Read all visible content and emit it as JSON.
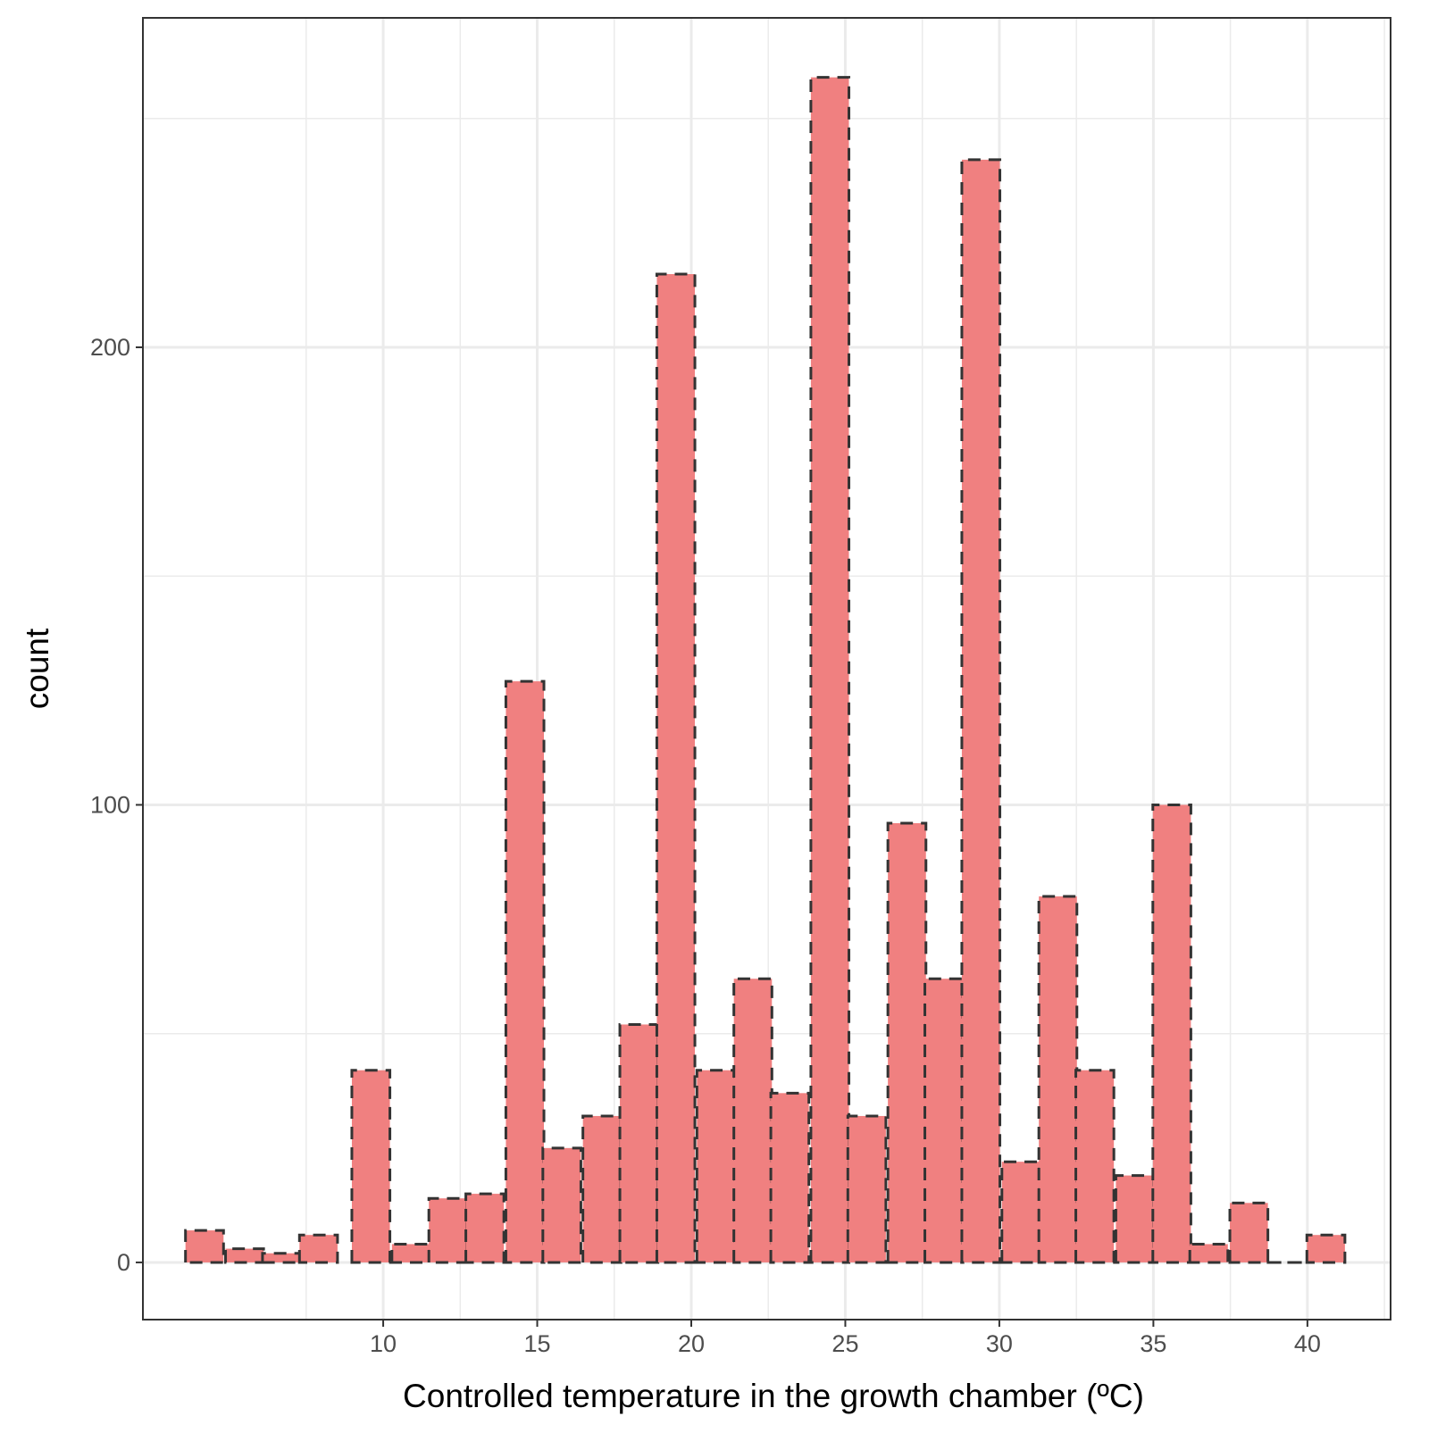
{
  "chart_data": {
    "type": "bar",
    "subtype": "histogram",
    "xlabel": "Controlled temperature in the growth chamber (ºC)",
    "ylabel": "count",
    "x_ticks": [
      10,
      15,
      20,
      25,
      30,
      35,
      40
    ],
    "y_ticks": [
      0,
      100,
      200
    ],
    "xlim": [
      2.2,
      42.7
    ],
    "ylim": [
      -12.5,
      272
    ],
    "grid": true,
    "bin_width": 1.235,
    "bins": [
      {
        "center": 4.2,
        "count": 7
      },
      {
        "center": 5.5,
        "count": 3
      },
      {
        "center": 6.7,
        "count": 2
      },
      {
        "center": 7.9,
        "count": 6
      },
      {
        "center": 9.6,
        "count": 42
      },
      {
        "center": 10.9,
        "count": 4
      },
      {
        "center": 12.1,
        "count": 14
      },
      {
        "center": 13.3,
        "count": 15
      },
      {
        "center": 14.6,
        "count": 127
      },
      {
        "center": 15.8,
        "count": 25
      },
      {
        "center": 17.1,
        "count": 32
      },
      {
        "center": 18.3,
        "count": 52
      },
      {
        "center": 19.5,
        "count": 216
      },
      {
        "center": 20.8,
        "count": 42
      },
      {
        "center": 22.0,
        "count": 62
      },
      {
        "center": 23.2,
        "count": 37
      },
      {
        "center": 24.5,
        "count": 259
      },
      {
        "center": 25.7,
        "count": 32
      },
      {
        "center": 27.0,
        "count": 96
      },
      {
        "center": 28.2,
        "count": 62
      },
      {
        "center": 29.4,
        "count": 241
      },
      {
        "center": 30.7,
        "count": 22
      },
      {
        "center": 31.9,
        "count": 80
      },
      {
        "center": 33.1,
        "count": 42
      },
      {
        "center": 34.4,
        "count": 19
      },
      {
        "center": 35.6,
        "count": 100
      },
      {
        "center": 36.8,
        "count": 4
      },
      {
        "center": 38.1,
        "count": 13
      },
      {
        "center": 39.3,
        "count": 0
      },
      {
        "center": 40.6,
        "count": 6
      }
    ],
    "colors": {
      "fill": "#F08080",
      "outline": "#333333",
      "grid": "#EBEBEB",
      "panel_border": "#333333"
    }
  }
}
